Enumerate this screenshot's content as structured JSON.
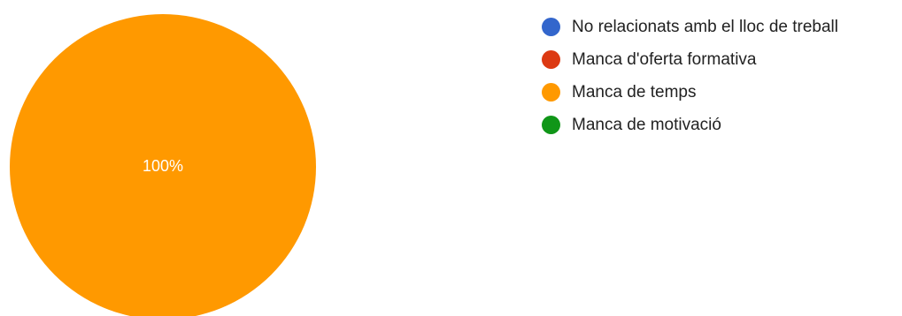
{
  "chart_data": {
    "type": "pie",
    "categories": [
      "No relacionats amb el lloc de treball",
      "Manca d'oferta formativa",
      "Manca de temps",
      "Manca de motivació"
    ],
    "values": [
      0,
      0,
      100,
      0
    ],
    "colors": [
      "#3366cc",
      "#dc3912",
      "#ff9900",
      "#109618"
    ],
    "slice_labels": [
      "",
      "",
      "100%",
      ""
    ],
    "legend_position": "right"
  }
}
